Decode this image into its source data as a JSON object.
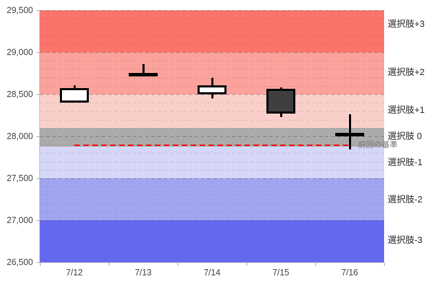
{
  "chart_data": {
    "type": "candlestick",
    "title": "",
    "xlabel": "",
    "ylabel": "",
    "ylim": [
      26500,
      29500
    ],
    "yticks": [
      {
        "value": 29500,
        "label": "29,500"
      },
      {
        "value": 29000,
        "label": "29,000"
      },
      {
        "value": 28500,
        "label": "28,500"
      },
      {
        "value": 28000,
        "label": "28,000"
      },
      {
        "value": 27500,
        "label": "27,500"
      },
      {
        "value": 27000,
        "label": "27,000"
      },
      {
        "value": 26500,
        "label": "26,500"
      }
    ],
    "minor_grid_interval": 100,
    "major_grid_interval": 500,
    "categories": [
      "7/12",
      "7/13",
      "7/14",
      "7/15",
      "7/16"
    ],
    "ohlc": [
      {
        "date": "7/12",
        "open": 28400,
        "high": 28610,
        "low": 28400,
        "close": 28575,
        "direction": "up"
      },
      {
        "date": "7/13",
        "open": 28730,
        "high": 28860,
        "low": 28730,
        "close": 28730,
        "direction": "flat"
      },
      {
        "date": "7/14",
        "open": 28500,
        "high": 28695,
        "low": 28450,
        "close": 28605,
        "direction": "up"
      },
      {
        "date": "7/15",
        "open": 28565,
        "high": 28580,
        "low": 28230,
        "close": 28270,
        "direction": "down"
      },
      {
        "date": "7/16",
        "open": 28020,
        "high": 28260,
        "low": 27845,
        "close": 28020,
        "direction": "flat"
      }
    ],
    "candle_colors": {
      "up_fill": "#FFFFFF",
      "down_fill": "#3F3F3F",
      "outline": "#000000"
    },
    "bands": [
      {
        "label": "選択肢+3",
        "from": 29000,
        "to": 29500,
        "color": "#FA746B",
        "label_at": 29340
      },
      {
        "label": "選択肢+2",
        "from": 28500,
        "to": 29000,
        "color": "#FAA29B",
        "label_at": 28760
      },
      {
        "label": "選択肢+1",
        "from": 28100,
        "to": 28500,
        "color": "#FBCFC9",
        "label_at": 28310
      },
      {
        "label": "選択肢 0",
        "from": 27880,
        "to": 28100,
        "color": "#ABABAB",
        "label_at": 28000
      },
      {
        "label": "選択肢-1",
        "from": 27500,
        "to": 27880,
        "color": "#D5D6F8",
        "label_at": 27690
      },
      {
        "label": "選択肢-2",
        "from": 27000,
        "to": 27500,
        "color": "#A1A5F0",
        "label_at": 27250
      },
      {
        "label": "選択肢-3",
        "from": 26500,
        "to": 27000,
        "color": "#6468EF",
        "label_at": 26760
      }
    ],
    "baseline": {
      "value": 27895,
      "label": "前回の基準",
      "color": "#FF0000",
      "from_category": "7/12",
      "to_category": "7/16"
    },
    "legend": null,
    "grid": true
  }
}
